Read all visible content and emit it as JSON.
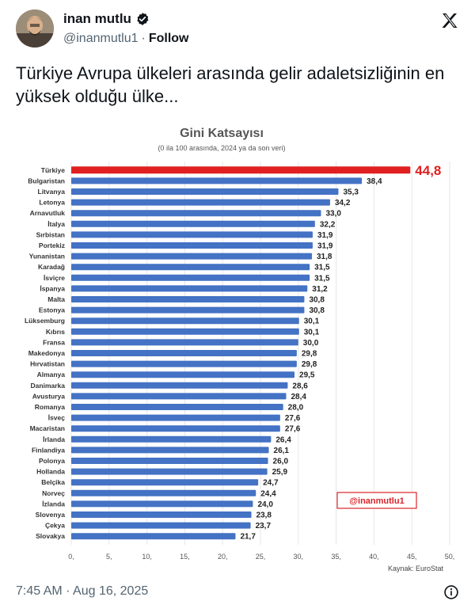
{
  "header": {
    "display_name": "inan mutlu",
    "handle": "@inanmutlu1",
    "separator": "·",
    "follow_label": "Follow"
  },
  "tweet": {
    "text": "Türkiye Avrupa ülkeleri arasında gelir adaletsizliğinin en yüksek olduğu ülke..."
  },
  "footer": {
    "timestamp": "7:45 AM · Aug 16, 2025"
  },
  "colors": {
    "highlight": "#e02020",
    "bar": "#4472c4",
    "verified": "#1d9bf0"
  },
  "chart_data": {
    "type": "bar",
    "orientation": "horizontal",
    "title": "Gini Katsayısı",
    "subtitle": "(0 ila 100 arasında, 2024 ya da son veri)",
    "source": "Kaynak: EuroStat",
    "watermark": "@inanmutlu1",
    "xlim": [
      0,
      50
    ],
    "xticks": [
      "0,",
      "5,",
      "10,",
      "15,",
      "20,",
      "25,",
      "30,",
      "35,",
      "40,",
      "45,",
      "50,"
    ],
    "highlight_category": "Türkiye",
    "categories": [
      "Türkiye",
      "Bulgaristan",
      "Litvanya",
      "Letonya",
      "Arnavutluk",
      "İtalya",
      "Sırbistan",
      "Portekiz",
      "Yunanistan",
      "Karadağ",
      "İsviçre",
      "İspanya",
      "Malta",
      "Estonya",
      "Lüksemburg",
      "Kıbrıs",
      "Fransa",
      "Makedonya",
      "Hırvatistan",
      "Almanya",
      "Danimarka",
      "Avusturya",
      "Romanya",
      "İsveç",
      "Macaristan",
      "İrlanda",
      "Finlandiya",
      "Polonya",
      "Hollanda",
      "Belçika",
      "Norveç",
      "İzlanda",
      "Slovenya",
      "Çekya",
      "Slovakya"
    ],
    "values": [
      44.8,
      38.4,
      35.3,
      34.2,
      33.0,
      32.2,
      31.9,
      31.9,
      31.8,
      31.5,
      31.5,
      31.2,
      30.8,
      30.8,
      30.1,
      30.1,
      30.0,
      29.8,
      29.8,
      29.5,
      28.6,
      28.4,
      28.0,
      27.6,
      27.6,
      26.4,
      26.1,
      26.0,
      25.9,
      24.7,
      24.4,
      24.0,
      23.8,
      23.7,
      21.7
    ],
    "labels": [
      "44,8",
      "38,4",
      "35,3",
      "34,2",
      "33,0",
      "32,2",
      "31,9",
      "31,9",
      "31,8",
      "31,5",
      "31,5",
      "31,2",
      "30,8",
      "30,8",
      "30,1",
      "30,1",
      "30,0",
      "29,8",
      "29,8",
      "29,5",
      "28,6",
      "28,4",
      "28,0",
      "27,6",
      "27,6",
      "26,4",
      "26,1",
      "26,0",
      "25,9",
      "24,7",
      "24,4",
      "24,0",
      "23,8",
      "23,7",
      "21,7"
    ]
  }
}
